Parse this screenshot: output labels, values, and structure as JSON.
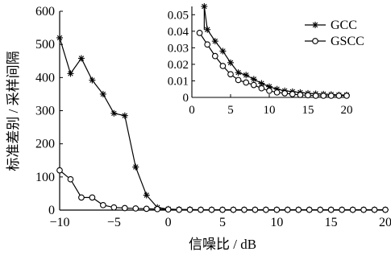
{
  "chart_data": [
    {
      "type": "line",
      "xlabel": "信噪比 / dB",
      "ylabel": "标准差别 / 采样间隔",
      "xlim": [
        -10,
        20
      ],
      "ylim": [
        0,
        600
      ],
      "x_ticks": [
        -10,
        -5,
        0,
        5,
        10,
        15,
        20
      ],
      "y_ticks": [
        0,
        100,
        200,
        300,
        400,
        500,
        600
      ],
      "x_tick_labels": [
        "−10",
        "−5",
        "0",
        "5",
        "10",
        "15",
        "20"
      ],
      "y_tick_labels": [
        "0",
        "100",
        "200",
        "300",
        "400",
        "500",
        "600"
      ],
      "grid": false,
      "legend_position": "top-right",
      "series": [
        {
          "name": "GCC",
          "marker": "asterisk",
          "x": [
            -10,
            -9,
            -8,
            -7,
            -6,
            -5,
            -4,
            -3,
            -2,
            -1,
            0,
            1,
            2,
            3,
            4,
            5,
            6,
            7,
            8,
            9,
            10,
            11,
            12,
            13,
            14,
            15,
            16,
            17,
            18,
            19,
            20
          ],
          "y": [
            520,
            412,
            458,
            392,
            350,
            292,
            285,
            130,
            45,
            8,
            3,
            2,
            2,
            1,
            1,
            1,
            1,
            1,
            1,
            1,
            1,
            1,
            1,
            1,
            1,
            1,
            1,
            1,
            1,
            1,
            1
          ]
        },
        {
          "name": "GSCC",
          "marker": "circle",
          "x": [
            -10,
            -9,
            -8,
            -7,
            -6,
            -5,
            -4,
            -3,
            -2,
            -1,
            0,
            1,
            2,
            3,
            4,
            5,
            6,
            7,
            8,
            9,
            10,
            11,
            12,
            13,
            14,
            15,
            16,
            17,
            18,
            19,
            20
          ],
          "y": [
            120,
            93,
            38,
            38,
            15,
            8,
            6,
            5,
            4,
            3,
            2,
            1,
            1,
            1,
            1,
            1,
            1,
            1,
            1,
            1,
            1,
            1,
            1,
            1,
            1,
            1,
            1,
            1,
            1,
            1,
            1
          ]
        }
      ]
    },
    {
      "type": "line",
      "role": "inset",
      "xlim": [
        0,
        20
      ],
      "ylim": [
        0,
        0.055
      ],
      "x_ticks": [
        0,
        5,
        10,
        15,
        20
      ],
      "y_ticks": [
        0,
        0.01,
        0.02,
        0.03,
        0.04,
        0.05
      ],
      "x_tick_labels": [
        "0",
        "5",
        "10",
        "15",
        "20"
      ],
      "y_tick_labels": [
        "0",
        "0.01",
        "0.02",
        "0.03",
        "0.04",
        "0.05"
      ],
      "grid": false,
      "series": [
        {
          "name": "GCC",
          "marker": "asterisk",
          "x": [
            1.6,
            2,
            3,
            4,
            5,
            6,
            7,
            8,
            9,
            10,
            11,
            12,
            13,
            14,
            15,
            16,
            17,
            18,
            19,
            20
          ],
          "y": [
            0.055,
            0.041,
            0.034,
            0.028,
            0.021,
            0.015,
            0.0135,
            0.011,
            0.0085,
            0.0065,
            0.005,
            0.004,
            0.0035,
            0.003,
            0.0025,
            0.0022,
            0.002,
            0.0018,
            0.0015,
            0.0015
          ]
        },
        {
          "name": "GSCC",
          "marker": "circle",
          "x": [
            1,
            2,
            3,
            4,
            5,
            6,
            7,
            8,
            9,
            10,
            11,
            12,
            13,
            14,
            15,
            16,
            17,
            18,
            19,
            20
          ],
          "y": [
            0.039,
            0.032,
            0.025,
            0.019,
            0.014,
            0.0105,
            0.009,
            0.0075,
            0.0055,
            0.004,
            0.003,
            0.0025,
            0.002,
            0.0015,
            0.0013,
            0.001,
            0.001,
            0.001,
            0.001,
            0.001
          ]
        }
      ],
      "vertical_spike": {
        "x": 1.6,
        "y": [
          0.055,
          0.041
        ]
      }
    }
  ]
}
